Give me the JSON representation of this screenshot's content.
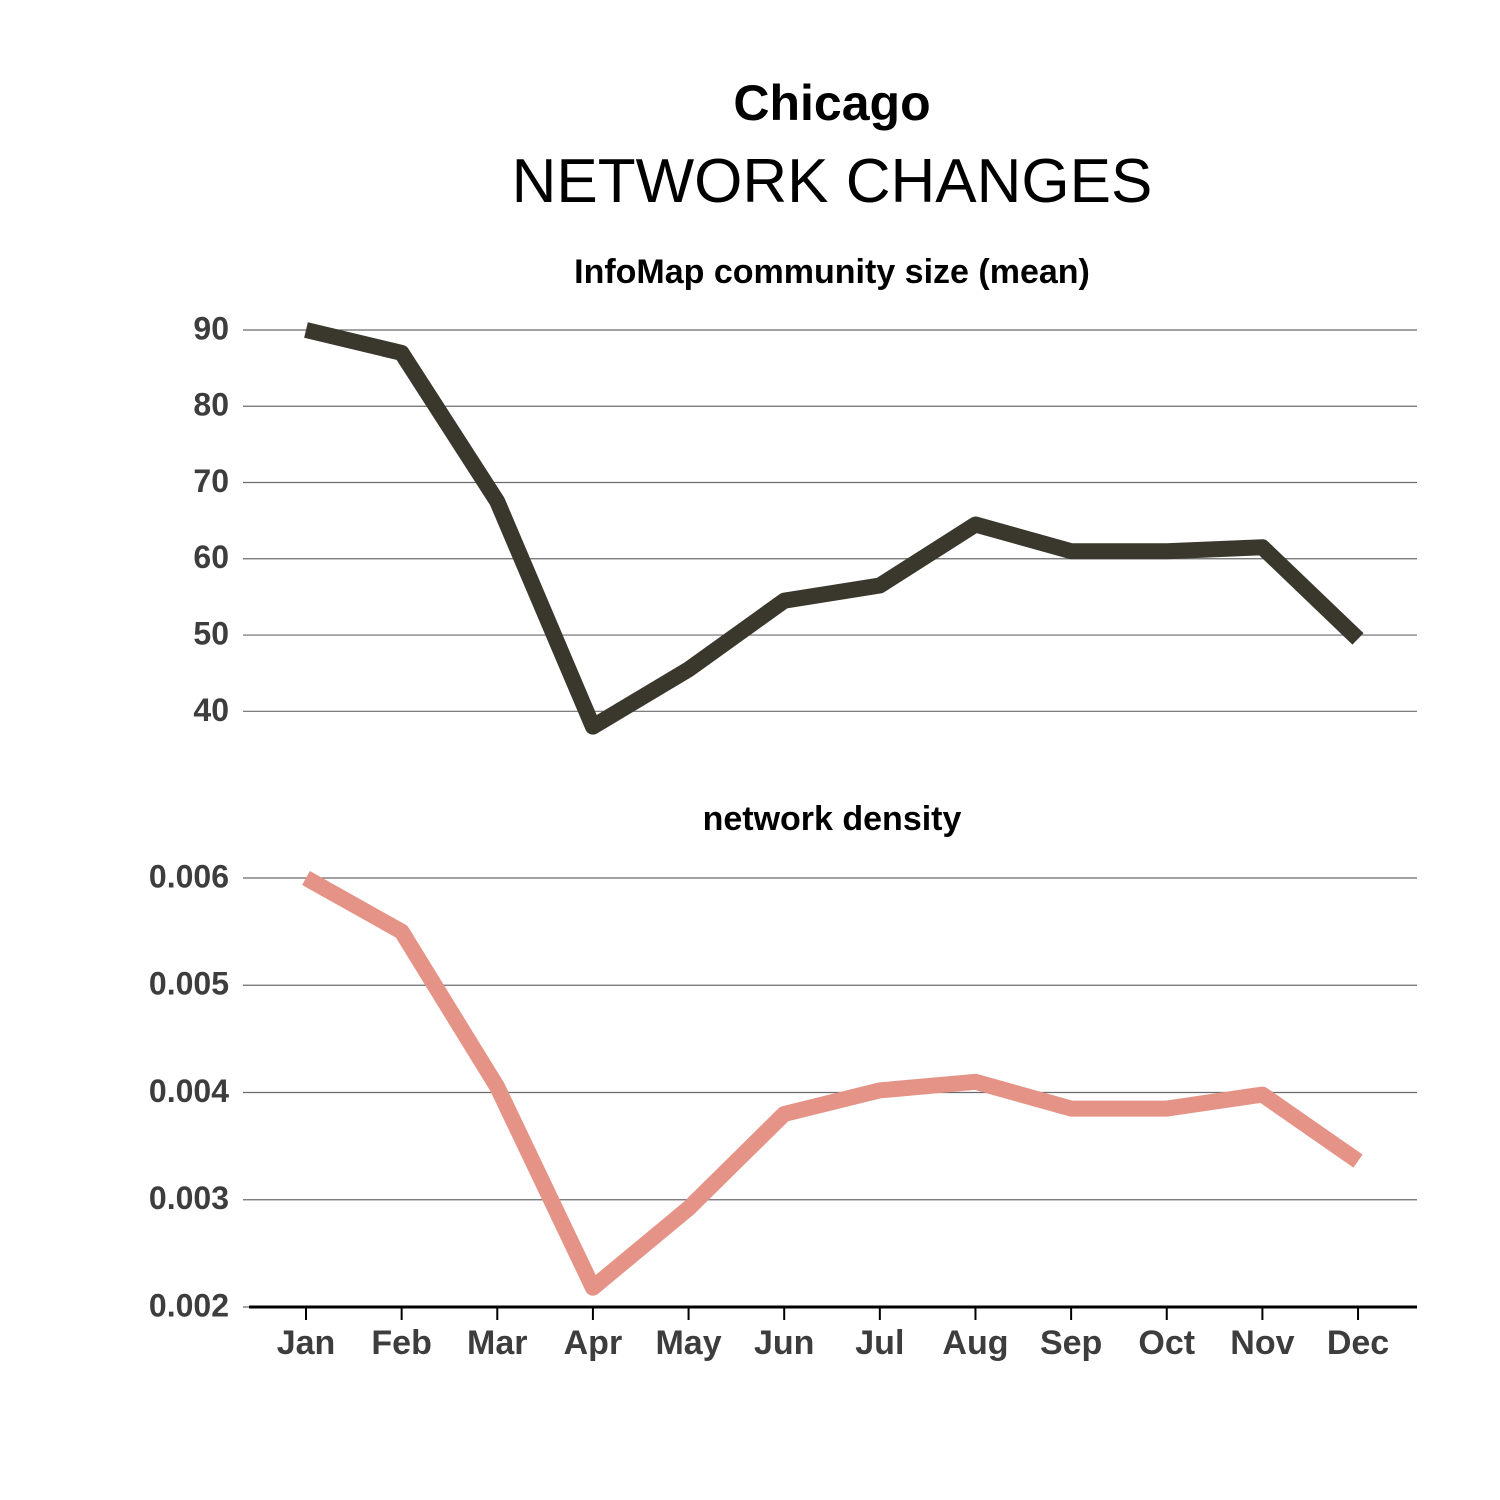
{
  "header": {
    "title": "Chicago",
    "subtitle": "NETWORK CHANGES"
  },
  "chart_data": [
    {
      "type": "line",
      "title": "InfoMap community size (mean)",
      "xlabel": "",
      "ylabel": "",
      "categories": [
        "Jan",
        "Feb",
        "Mar",
        "Apr",
        "May",
        "Jun",
        "Jul",
        "Aug",
        "Sep",
        "Oct",
        "Nov",
        "Dec"
      ],
      "series": [
        {
          "values": [
            90,
            87,
            67.5,
            38,
            45.5,
            54.5,
            56.5,
            64.5,
            61,
            61,
            61.5,
            49.5
          ],
          "color": "#3a372d"
        }
      ],
      "yticks": [
        "40",
        "50",
        "60",
        "70",
        "80",
        "90"
      ],
      "ylim": [
        36.5,
        90.5
      ],
      "grid": "horizontal"
    },
    {
      "type": "line",
      "title": "network density",
      "xlabel": "",
      "ylabel": "",
      "categories": [
        "Jan",
        "Feb",
        "Mar",
        "Apr",
        "May",
        "Jun",
        "Jul",
        "Aug",
        "Sep",
        "Oct",
        "Nov",
        "Dec"
      ],
      "series": [
        {
          "values": [
            0.006,
            0.0055,
            0.00405,
            0.00218,
            0.00292,
            0.0038,
            0.00402,
            0.0041,
            0.00385,
            0.00385,
            0.00398,
            0.00336
          ],
          "color": "#e59386"
        }
      ],
      "yticks": [
        "0.002",
        "0.003",
        "0.004",
        "0.005",
        "0.006"
      ],
      "ylim": [
        0.002,
        0.006
      ],
      "grid": "horizontal"
    }
  ]
}
